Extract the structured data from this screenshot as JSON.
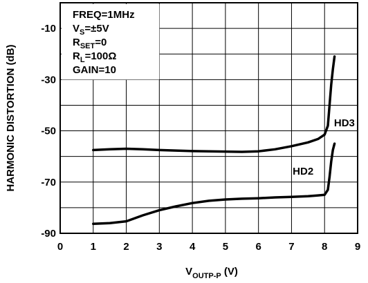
{
  "chart_data": {
    "type": "line",
    "xlabel": "V",
    "xlabel_sub": "OUTP-P",
    "xlabel_unit": " (V)",
    "ylabel": "HARMONIC DISTORTION (dB)",
    "xlim": [
      0,
      9
    ],
    "ylim": [
      -90,
      0
    ],
    "x_ticks": [
      0,
      1,
      2,
      3,
      4,
      5,
      6,
      7,
      8,
      9
    ],
    "x_tick_labels": [
      "0",
      "1",
      "2",
      "3",
      "4",
      "5",
      "6",
      "7",
      "8",
      "9"
    ],
    "y_ticks": [
      -10,
      -30,
      -50,
      -70,
      -90
    ],
    "y_tick_labels": [
      "-10",
      "-30",
      "-50",
      "-70",
      "-90"
    ],
    "grid": true,
    "annotations": [
      {
        "parts": [
          {
            "t": "FREQ=1MHz"
          }
        ]
      },
      {
        "parts": [
          {
            "t": "V"
          },
          {
            "t": "S",
            "sub": true
          },
          {
            "t": "=±5V"
          }
        ]
      },
      {
        "parts": [
          {
            "t": "R"
          },
          {
            "t": "SET",
            "sub": true
          },
          {
            "t": "=0"
          }
        ]
      },
      {
        "parts": [
          {
            "t": "R"
          },
          {
            "t": "L",
            "sub": true
          },
          {
            "t": "=100Ω"
          }
        ]
      },
      {
        "parts": [
          {
            "t": "GAIN=10"
          }
        ]
      }
    ],
    "series": [
      {
        "name": "HD3",
        "label_at": [
          8.6,
          -48.3
        ],
        "x": [
          1,
          1.5,
          2,
          2.5,
          3,
          3.5,
          4,
          4.5,
          5,
          5.5,
          6,
          6.5,
          7,
          7.5,
          7.8,
          8.0,
          8.1,
          8.15,
          8.2,
          8.25,
          8.3
        ],
        "y": [
          -57.5,
          -57.2,
          -57.0,
          -57.2,
          -57.5,
          -57.7,
          -57.9,
          -58.0,
          -58.1,
          -58.2,
          -58.0,
          -57.2,
          -56.0,
          -54.5,
          -53.2,
          -51.5,
          -48.0,
          -40.0,
          -32.0,
          -26.0,
          -21.0
        ]
      },
      {
        "name": "HD2",
        "label_at": [
          7.35,
          -67.1
        ],
        "x": [
          1,
          1.5,
          2,
          2.5,
          3,
          3.5,
          4,
          4.5,
          5,
          5.5,
          6,
          6.5,
          7,
          7.5,
          7.8,
          8.0,
          8.1,
          8.15,
          8.2,
          8.25,
          8.3
        ],
        "y": [
          -86.3,
          -86.0,
          -85.3,
          -83.0,
          -81.0,
          -79.5,
          -78.2,
          -77.3,
          -76.8,
          -76.5,
          -76.3,
          -76.0,
          -75.8,
          -75.5,
          -75.2,
          -75.0,
          -73.0,
          -68.0,
          -62.0,
          -57.5,
          -55.0
        ]
      }
    ]
  }
}
